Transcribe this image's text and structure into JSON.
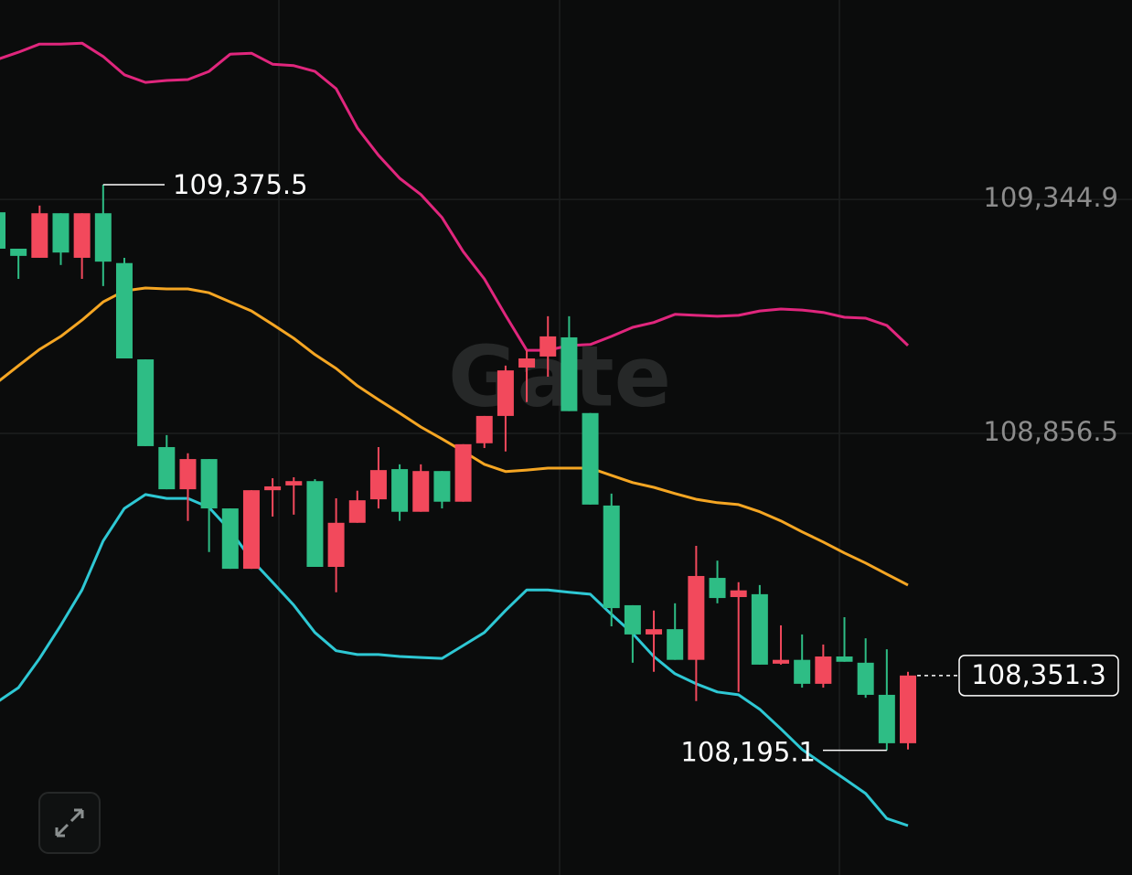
{
  "chart_data": {
    "type": "candlestick",
    "ylim": [
      107935,
      109761
    ],
    "yticks": [
      {
        "value": 109344.9,
        "label": "109,344.9"
      },
      {
        "value": 108856.5,
        "label": "108,856.5"
      }
    ],
    "grid": true,
    "up_color": "#f2495c",
    "down_color": "#2ebd85",
    "watermark": "Gate",
    "open": [
      109318,
      109242,
      109223,
      109316,
      109223,
      109316,
      109212,
      109011,
      108828,
      108740,
      108803,
      108700,
      108574,
      108738,
      108748,
      108757,
      108578,
      108670,
      108719,
      108782,
      108693,
      108778,
      108714,
      108836,
      108893,
      108994,
      109017,
      109057,
      108899,
      108706,
      108498,
      108437,
      108448,
      108384,
      108555,
      108515,
      108521,
      108376,
      108384,
      108334,
      108391,
      108378,
      108311,
      108210
    ],
    "high": [
      109326,
      109242,
      109332,
      109316,
      109316,
      109375.5,
      109223,
      109011,
      108853,
      108815,
      108803,
      108700,
      108738,
      108763,
      108765,
      108761,
      108721,
      108737,
      108828,
      108792,
      108792,
      108778,
      108834,
      108893,
      108998,
      109030,
      109101,
      109101,
      108899,
      108731,
      108498,
      108487,
      108502,
      108622,
      108591,
      108546,
      108540,
      108456,
      108437,
      108416,
      108473,
      108429,
      108406,
      108359
    ],
    "low": [
      109227,
      109179,
      109223,
      109208,
      109179,
      109164,
      109013,
      108830,
      108740,
      108674,
      108609,
      108574,
      108574,
      108683,
      108687,
      108578,
      108525,
      108670,
      108700,
      108674,
      108693,
      108700,
      108714,
      108826,
      108819,
      108922,
      108975,
      108903,
      108708,
      108454,
      108378,
      108359,
      108384,
      108298,
      108502,
      108317,
      108374,
      108374,
      108326,
      108326,
      108380,
      108305,
      108195.1,
      108197
    ],
    "close": [
      109242,
      109227,
      109316,
      109234,
      109316,
      109215,
      109013,
      108830,
      108740,
      108803,
      108700,
      108574,
      108738,
      108746,
      108757,
      108578,
      108670,
      108717,
      108780,
      108693,
      108778,
      108714,
      108834,
      108893,
      108988,
      109013,
      109059,
      108903,
      108708,
      108492,
      108437,
      108448,
      108384,
      108559,
      108513,
      108529,
      108374,
      108384,
      108334,
      108391,
      108380,
      108311,
      108210,
      108351.3
    ],
    "bands": [
      {
        "color": "#e0267d",
        "values": [
          109637,
          109652,
          109669,
          109669,
          109671,
          109643,
          109605,
          109589,
          109593,
          109595,
          109612,
          109648,
          109650,
          109627,
          109624,
          109612,
          109576,
          109494,
          109437,
          109389,
          109355,
          109307,
          109236,
          109179,
          109103,
          109030,
          109030,
          109040,
          109042,
          109059,
          109078,
          109088,
          109105,
          109103,
          109101,
          109103,
          109112,
          109116,
          109114,
          109109,
          109099,
          109097,
          109082,
          109040
        ]
      },
      {
        "color": "#f5a623",
        "values": [
          108963,
          108998,
          109032,
          109059,
          109093,
          109131,
          109154,
          109160,
          109158,
          109158,
          109150,
          109131,
          109112,
          109084,
          109055,
          109021,
          108992,
          108956,
          108927,
          108899,
          108870,
          108845,
          108819,
          108792,
          108777,
          108780,
          108784,
          108784,
          108784,
          108769,
          108754,
          108744,
          108731,
          108719,
          108712,
          108708,
          108693,
          108674,
          108651,
          108630,
          108607,
          108586,
          108563,
          108540
        ]
      },
      {
        "color": "#2ec8d4",
        "values": [
          108296,
          108326,
          108387,
          108456,
          108530,
          108632,
          108700,
          108729,
          108721,
          108721,
          108702,
          108654,
          108593,
          108546,
          108498,
          108441,
          108403,
          108395,
          108395,
          108391,
          108389,
          108387,
          108414,
          108441,
          108487,
          108530,
          108530,
          108525,
          108521,
          108479,
          108439,
          108391,
          108355,
          108334,
          108317,
          108311,
          108281,
          108240,
          108197,
          108166,
          108136,
          108105,
          108053,
          108038
        ]
      }
    ],
    "high_label": {
      "value": 109375.5,
      "label": "109,375.5"
    },
    "low_label": {
      "value": 108195.1,
      "label": "108,195.1"
    },
    "last_price": {
      "value": 108351.3,
      "label": "108,351.3"
    }
  }
}
